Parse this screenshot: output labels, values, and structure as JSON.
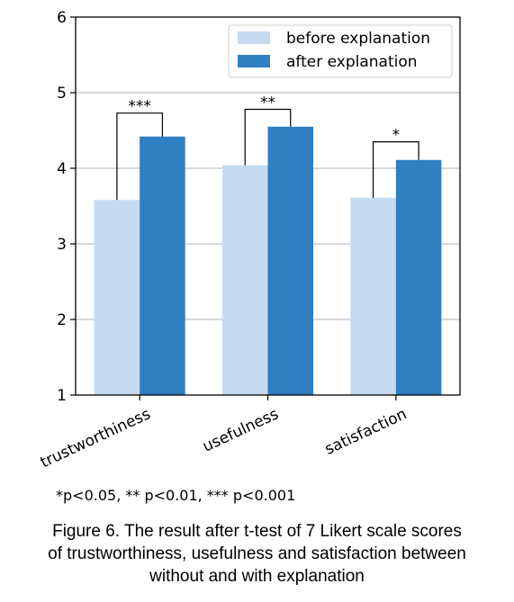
{
  "chart_data": {
    "type": "bar",
    "categories": [
      "trustworthiness",
      "usefulness",
      "satisfaction"
    ],
    "series": [
      {
        "name": "before explanation",
        "color": "#c6dbef",
        "values": [
          3.58,
          4.04,
          3.61
        ]
      },
      {
        "name": "after explanation",
        "color": "#2f7fc1",
        "values": [
          4.42,
          4.55,
          4.11
        ]
      }
    ],
    "ylim": [
      1,
      6
    ],
    "yticks": [
      "1",
      "2",
      "3",
      "4",
      "5",
      "6"
    ],
    "grid": "horizontal",
    "legend_position": "top-right",
    "significance": [
      {
        "category": "trustworthiness",
        "marker": "***",
        "bracket_y": 4.73
      },
      {
        "category": "usefulness",
        "marker": "**",
        "bracket_y": 4.78
      },
      {
        "category": "satisfaction",
        "marker": "*",
        "bracket_y": 4.35
      }
    ],
    "xlabel": "",
    "ylabel": ""
  },
  "footnote": "*p<0.05, ** p<0.01, *** p<0.001",
  "caption": {
    "line1": "Figure 6. The result after t-test of 7 Likert scale scores",
    "line2": "of trustworthiness, usefulness and satisfaction between",
    "line3": "without and with explanation"
  }
}
